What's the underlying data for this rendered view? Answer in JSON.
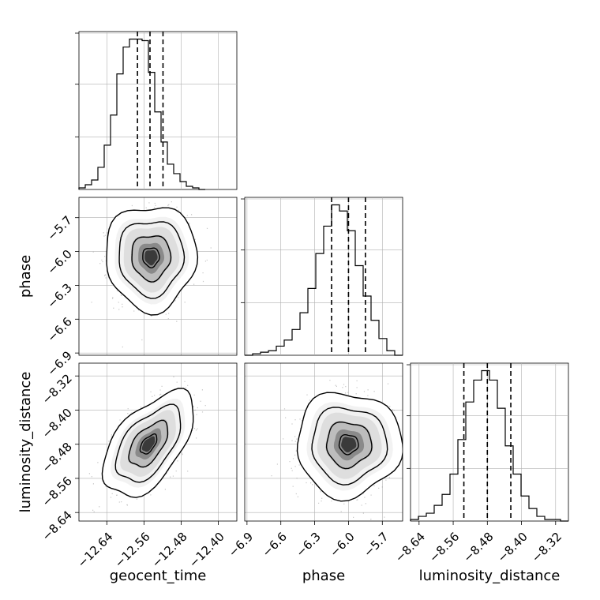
{
  "chart_data": {
    "type": "corner",
    "parameters": [
      {
        "name": "geocent_time",
        "label": "geocent_time",
        "range": [
          -12.7,
          -12.36
        ],
        "ticks": [
          -12.64,
          -12.56,
          -12.48,
          -12.4
        ],
        "tick_labels": [
          "−12.64",
          "−12.56",
          "−12.48",
          "−12.40"
        ],
        "median": -12.547,
        "quantile_16": -12.574,
        "quantile_84": -12.519,
        "histogram": {
          "edges_start": -12.7,
          "bin_width": 0.0136,
          "counts": [
            1,
            3,
            6,
            14,
            28,
            47,
            73,
            90,
            95,
            95,
            94,
            74,
            49,
            30,
            16,
            10,
            5,
            2,
            1,
            0
          ]
        }
      },
      {
        "name": "phase",
        "label": "phase",
        "range": [
          -6.92,
          -5.52
        ],
        "ticks": [
          -6.9,
          -6.6,
          -6.3,
          -6.0,
          -5.7
        ],
        "tick_labels": [
          "−6.9",
          "−6.6",
          "−6.3",
          "−6.0",
          "−5.7"
        ],
        "median": -6.0,
        "quantile_16": -6.15,
        "quantile_84": -5.85,
        "histogram": {
          "edges_start": -6.92,
          "bin_width": 0.07,
          "counts": [
            0,
            1,
            2,
            3,
            6,
            10,
            17,
            28,
            44,
            67,
            85,
            99,
            95,
            82,
            59,
            39,
            23,
            11,
            3,
            0
          ]
        }
      },
      {
        "name": "luminosity_distance",
        "label": "luminosity_distance",
        "range": [
          -8.66,
          -8.29
        ],
        "ticks": [
          -8.64,
          -8.56,
          -8.48,
          -8.4,
          -8.32
        ],
        "tick_labels": [
          "−8.64",
          "−8.56",
          "−8.48",
          "−8.40",
          "−8.32"
        ],
        "median": -8.48,
        "quantile_16": -8.535,
        "quantile_84": -8.425,
        "histogram": {
          "edges_start": -8.66,
          "bin_width": 0.0185,
          "counts": [
            1,
            3,
            5,
            10,
            17,
            30,
            52,
            76,
            90,
            96,
            90,
            72,
            48,
            30,
            16,
            8,
            3,
            1,
            1,
            0
          ]
        }
      }
    ],
    "pairs": [
      {
        "x": "geocent_time",
        "y": "phase",
        "center": [
          -12.545,
          -6.05
        ],
        "sigma": [
          0.04,
          0.19
        ],
        "correlation": 0.0
      },
      {
        "x": "geocent_time",
        "y": "luminosity_distance",
        "center": [
          -12.55,
          -8.48
        ],
        "sigma": [
          0.04,
          0.05
        ],
        "correlation": 0.55
      },
      {
        "x": "phase",
        "y": "luminosity_distance",
        "center": [
          -6.0,
          -8.48
        ],
        "sigma": [
          0.19,
          0.05
        ],
        "correlation": 0.0
      }
    ],
    "grid": true,
    "colors": {
      "line": "#000000",
      "grid": "#b0b0b0",
      "scatter": "#9e9e9e"
    }
  }
}
